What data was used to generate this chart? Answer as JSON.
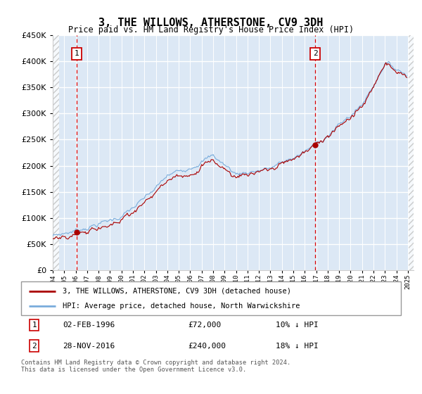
{
  "title": "3, THE WILLOWS, ATHERSTONE, CV9 3DH",
  "subtitle": "Price paid vs. HM Land Registry's House Price Index (HPI)",
  "ylim": [
    0,
    450000
  ],
  "yticks": [
    0,
    50000,
    100000,
    150000,
    200000,
    250000,
    300000,
    350000,
    400000,
    450000
  ],
  "xlim_start": 1994.0,
  "xlim_end": 2025.5,
  "sale1_year": 1996.085,
  "sale1_price": 72000,
  "sale2_year": 2016.91,
  "sale2_price": 240000,
  "hpi_color": "#7aaddc",
  "price_color": "#aa0000",
  "bg_color": "#dce8f5",
  "grid_color": "#ffffff",
  "legend_label1": "3, THE WILLOWS, ATHERSTONE, CV9 3DH (detached house)",
  "legend_label2": "HPI: Average price, detached house, North Warwickshire",
  "annotation1_label": "02-FEB-1996",
  "annotation1_price": "£72,000",
  "annotation1_hpi": "10% ↓ HPI",
  "annotation2_label": "28-NOV-2016",
  "annotation2_price": "£240,000",
  "annotation2_hpi": "18% ↓ HPI",
  "footer": "Contains HM Land Registry data © Crown copyright and database right 2024.\nThis data is licensed under the Open Government Licence v3.0."
}
